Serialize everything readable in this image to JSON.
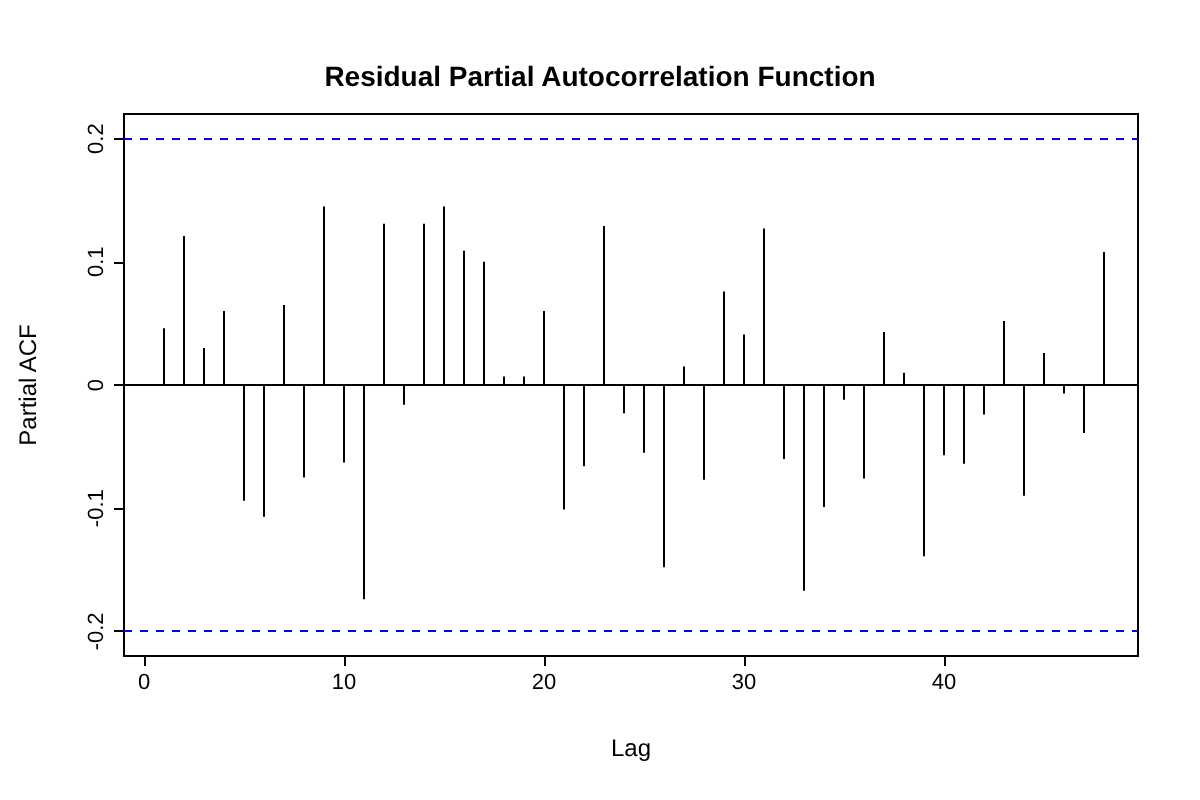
{
  "chart_data": {
    "type": "bar",
    "title": "Residual Partial Autocorrelation Function",
    "xlabel": "Lag",
    "ylabel": "Partial ACF",
    "x": [
      1,
      2,
      3,
      4,
      5,
      6,
      7,
      8,
      9,
      10,
      11,
      12,
      13,
      14,
      15,
      16,
      17,
      18,
      19,
      20,
      21,
      22,
      23,
      24,
      25,
      26,
      27,
      28,
      29,
      30,
      31,
      32,
      33,
      34,
      35,
      36,
      37,
      38,
      39,
      40,
      41,
      42,
      43,
      44,
      45,
      46,
      47,
      48
    ],
    "values": [
      0.046,
      0.121,
      0.03,
      0.06,
      -0.094,
      -0.107,
      0.065,
      -0.075,
      0.145,
      -0.063,
      -0.174,
      0.131,
      -0.016,
      0.131,
      0.145,
      0.109,
      0.1,
      0.007,
      0.007,
      0.06,
      -0.101,
      -0.066,
      0.129,
      -0.023,
      -0.055,
      -0.148,
      0.015,
      -0.077,
      0.076,
      0.041,
      0.127,
      -0.06,
      -0.167,
      -0.099,
      -0.012,
      -0.076,
      0.043,
      0.01,
      -0.139,
      -0.057,
      -0.064,
      -0.024,
      0.052,
      -0.09,
      0.026,
      -0.007,
      -0.039,
      0.108
    ],
    "color": "#000000",
    "xlim": [
      -1,
      49.7
    ],
    "xticks": [
      0,
      10,
      20,
      30,
      40
    ],
    "ylim": [
      -0.22,
      0.22
    ],
    "yticks": [
      -0.2,
      -0.1,
      0,
      0.1,
      0.2
    ],
    "ref_lines": [
      {
        "axis": "y",
        "value": 0.2,
        "color": "#0000ff",
        "line_style": "dashed"
      },
      {
        "axis": "y",
        "value": -0.2,
        "color": "#0000ff",
        "line_style": "dashed"
      },
      {
        "axis": "y",
        "value": 0,
        "color": "#000000",
        "line_style": "solid"
      }
    ],
    "grid": false
  }
}
